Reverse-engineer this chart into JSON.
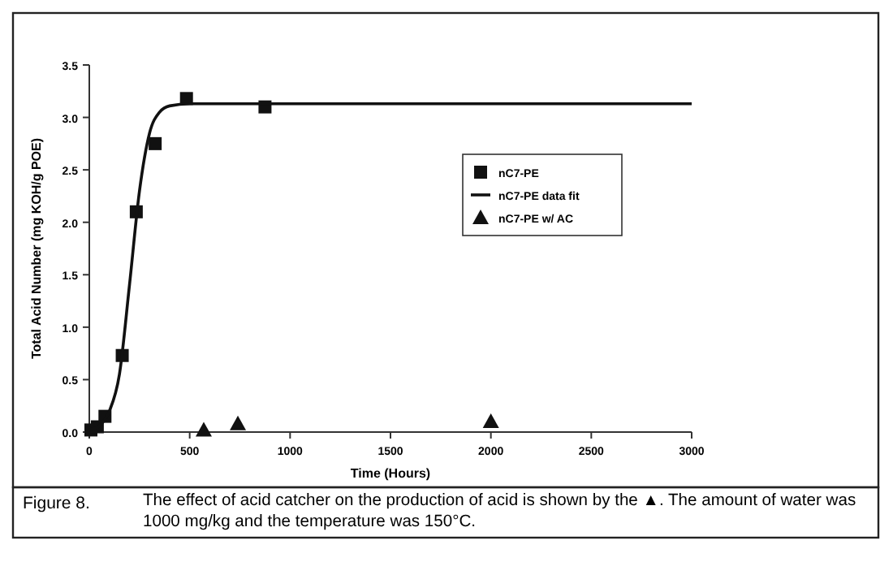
{
  "chart_data": {
    "type": "scatter",
    "xlabel": "Time (Hours)",
    "ylabel": "Total Acid Number (mg KOH/g POE)",
    "xlim": [
      0,
      3000
    ],
    "xticks": [
      0,
      500,
      1000,
      1500,
      2000,
      2500,
      3000
    ],
    "ylim": [
      0,
      3.5
    ],
    "yticks": [
      {
        "value": 0,
        "label": "0.0"
      },
      0.5,
      {
        "value": 1,
        "label": "1.0"
      },
      1.5,
      {
        "value": 2,
        "label": "2.0"
      },
      2.5,
      {
        "value": 3,
        "label": "3.0"
      },
      3.5
    ],
    "grid": false,
    "legend": "right",
    "series": [
      {
        "name": "nC7-PE",
        "marker": "square",
        "color": "#111111",
        "x": [
          8,
          40,
          78,
          164,
          234,
          328,
          484,
          875
        ],
        "values": [
          0.02,
          0.05,
          0.15,
          0.73,
          2.1,
          2.75,
          3.18,
          3.1
        ]
      },
      {
        "name": "nC7-PE data fit",
        "type": "line",
        "marker": "none",
        "line_style": "solid",
        "color": "#111111",
        "x": [
          0,
          50,
          100,
          150,
          200,
          250,
          300,
          350,
          400,
          500,
          1000,
          3000
        ],
        "values": [
          0.02,
          0.06,
          0.2,
          0.55,
          1.4,
          2.3,
          2.85,
          3.05,
          3.11,
          3.13,
          3.13,
          3.13
        ]
      },
      {
        "name": "nC7-PE w/ AC",
        "marker": "triangle",
        "color": "#111111",
        "x": [
          570,
          740,
          2000
        ],
        "values": [
          0.02,
          0.08,
          0.1
        ]
      }
    ],
    "annotations": [
      "Figure 8.",
      "The effect of acid catcher on the production of acid is shown by the ▲.  The amount of water was 1000 mg/kg and the temperature was 150°C."
    ]
  }
}
